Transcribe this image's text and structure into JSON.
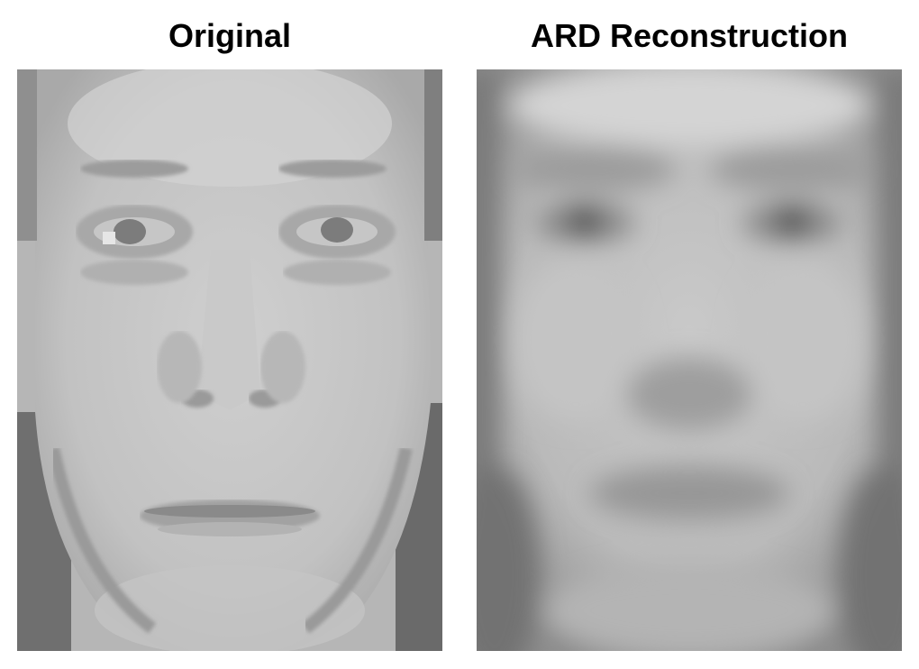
{
  "panels": [
    {
      "title": "Original",
      "image": "original-face-photo"
    },
    {
      "title": "ARD Reconstruction",
      "image": "reconstructed-face-blurred"
    }
  ],
  "colors": {
    "background": "#ffffff",
    "title_text": "#000000",
    "skin_light": "#c8c8c8",
    "skin_mid": "#a8a8a8",
    "shadow_dark": "#5a5a5a"
  }
}
